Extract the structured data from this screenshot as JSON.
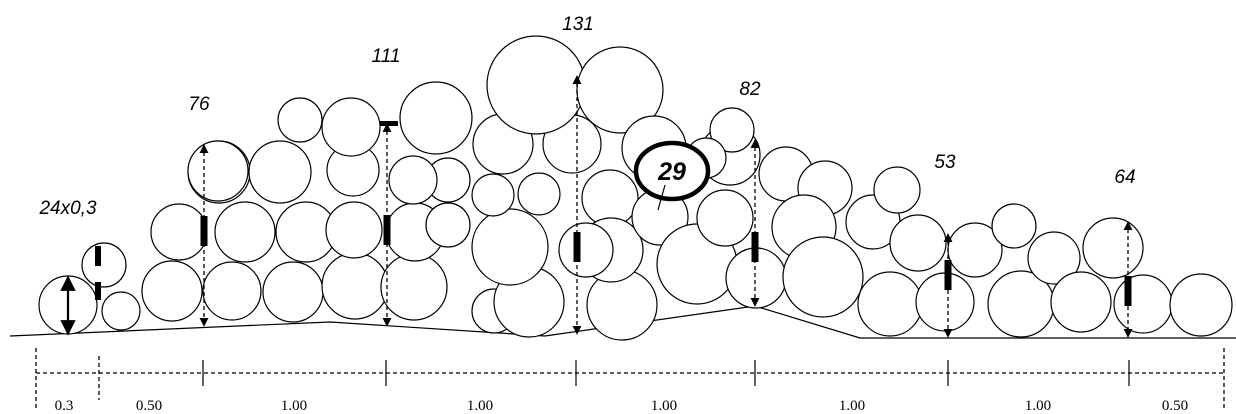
{
  "diagram": {
    "stack_labels": [
      "24x0,3",
      "76",
      "111",
      "131",
      "82",
      "53",
      "64"
    ],
    "highlight_label": "29",
    "segment_labels": [
      "0.3",
      "0.50",
      "1.00",
      "1.00",
      "1.00",
      "1.00",
      "1.00",
      "0.50"
    ]
  }
}
